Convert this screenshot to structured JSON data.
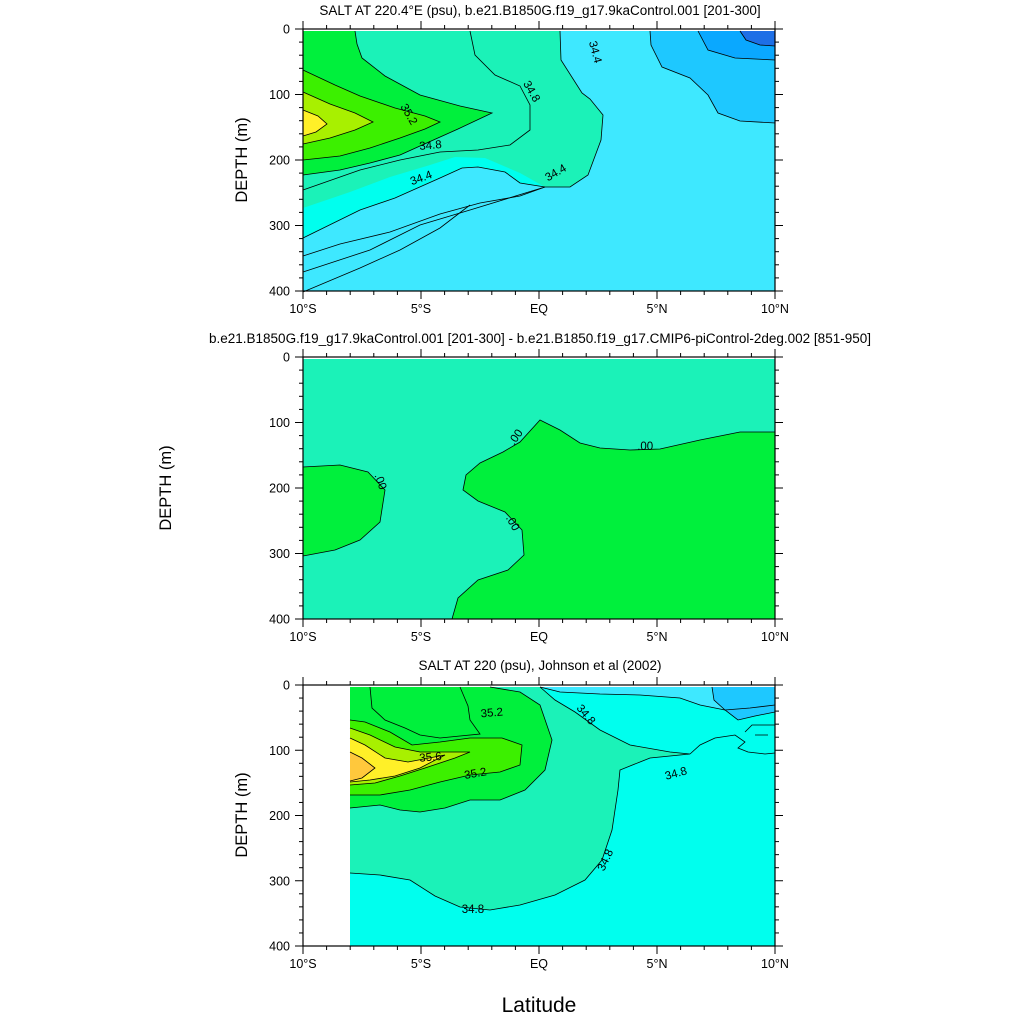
{
  "figure": {
    "xlabel": "Latitude"
  },
  "colors": {
    "blue_deep": "#1e6fe6",
    "blue_mid": "#0aa8ff",
    "blue_light": "#1ec8ff",
    "cyan": "#3ee8ff",
    "aqua": "#00ffee",
    "aquagreen": "#1bf2b8",
    "green": "#00f03c",
    "green2": "#3cf000",
    "lime": "#a8f000",
    "yellow": "#fff028",
    "orange": "#ffc83c",
    "contour_line": "#000000"
  },
  "chart_data": [
    {
      "type": "heatmap",
      "title": "SALT AT 220.4°E (psu), b.e21.B1850G.f19_g17.9kaControl.001 [201-300]",
      "xlabel": "",
      "ylabel": "DEPTH (m)",
      "x_tick_labels": [
        "10°S",
        "5°S",
        "EQ",
        "5°N",
        "10°N"
      ],
      "x_ticks": [
        -10,
        -5,
        0,
        5,
        10
      ],
      "y_tick_labels": [
        "0",
        "100",
        "200",
        "300",
        "400"
      ],
      "y_ticks": [
        0,
        100,
        200,
        300,
        400
      ],
      "xlim": [
        -10,
        10
      ],
      "ylim": [
        400,
        0
      ],
      "contour_labels": [
        {
          "text": "34.4",
          "x": 2.4,
          "y": 35,
          "angle": 75
        },
        {
          "text": "34.8",
          "x": -0.3,
          "y": 95,
          "angle": 60
        },
        {
          "text": "35.2",
          "x": -5.5,
          "y": 130,
          "angle": 60
        },
        {
          "text": "34.8",
          "x": -4.6,
          "y": 177,
          "angle": -5
        },
        {
          "text": "34.4",
          "x": -5.0,
          "y": 227,
          "angle": -20
        },
        {
          "text": "34.4",
          "x": 0.7,
          "y": 219,
          "angle": -30
        }
      ]
    },
    {
      "type": "heatmap",
      "title": "b.e21.B1850G.f19_g17.9kaControl.001 [201-300] - b.e21.B1850.f19_g17.CMIP6-piControl-2deg.002 [851-950]",
      "xlabel": "",
      "ylabel": "DEPTH (m)",
      "x_tick_labels": [
        "10°S",
        "5°S",
        "EQ",
        "5°N",
        "10°N"
      ],
      "x_ticks": [
        -10,
        -5,
        0,
        5,
        10
      ],
      "y_tick_labels": [
        "0",
        "100",
        "200",
        "300",
        "400"
      ],
      "y_ticks": [
        0,
        100,
        200,
        300,
        400
      ],
      "xlim": [
        -10,
        10
      ],
      "ylim": [
        400,
        0
      ],
      "contour_labels": [
        {
          "text": ".00",
          "x": -1.0,
          "y": 122,
          "angle": -55
        },
        {
          "text": ".00",
          "x": 4.5,
          "y": 136,
          "angle": 0
        },
        {
          "text": ".00",
          "x": -6.7,
          "y": 190,
          "angle": 70
        },
        {
          "text": ".00",
          "x": -1.1,
          "y": 253,
          "angle": 60
        }
      ]
    },
    {
      "type": "heatmap",
      "title": "SALT AT 220 (psu), Johnson et al (2002)",
      "xlabel": "",
      "ylabel": "DEPTH (m)",
      "x_tick_labels": [
        "10°S",
        "5°S",
        "EQ",
        "5°N",
        "10°N"
      ],
      "x_ticks": [
        -10,
        -5,
        0,
        5,
        10
      ],
      "y_tick_labels": [
        "0",
        "100",
        "200",
        "300",
        "400"
      ],
      "y_ticks": [
        0,
        100,
        200,
        300,
        400
      ],
      "xlim": [
        -10,
        10
      ],
      "ylim": [
        400,
        0
      ],
      "contour_labels": [
        {
          "text": "35.2",
          "x": -2.0,
          "y": 42,
          "angle": -5
        },
        {
          "text": "34.8",
          "x": 2.0,
          "y": 45,
          "angle": 50
        },
        {
          "text": "35.6",
          "x": -4.6,
          "y": 110,
          "angle": -5
        },
        {
          "text": "35.2",
          "x": -2.7,
          "y": 135,
          "angle": -10
        },
        {
          "text": "34.8",
          "x": 5.8,
          "y": 135,
          "angle": -15
        },
        {
          "text": "34.8",
          "x": 2.8,
          "y": 268,
          "angle": -65
        },
        {
          "text": "34.8",
          "x": -2.8,
          "y": 343,
          "angle": 0
        }
      ]
    }
  ]
}
